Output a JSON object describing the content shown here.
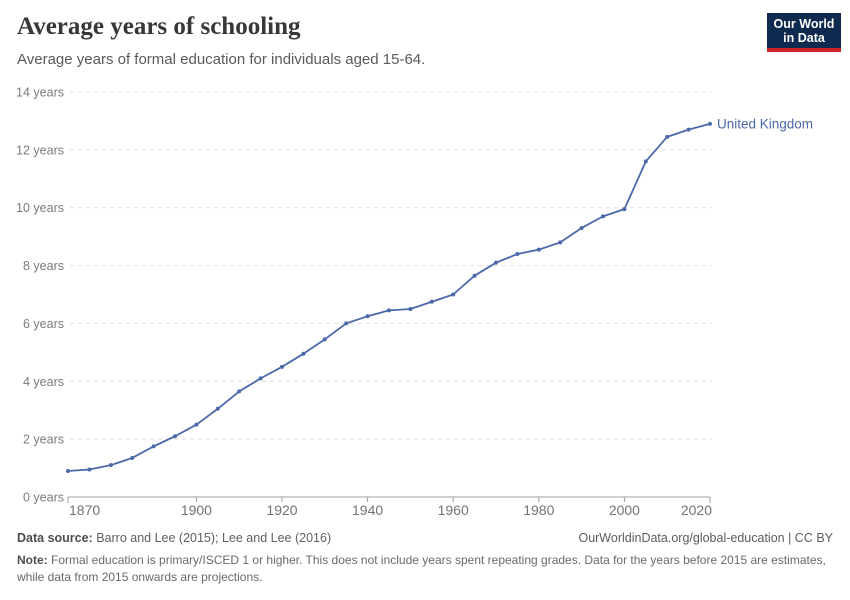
{
  "header": {
    "title": "Average years of schooling",
    "subtitle": "Average years of formal education for individuals aged 15-64.",
    "logo": {
      "line1": "Our World",
      "line2": "in Data"
    }
  },
  "colors": {
    "line": "#4a69a8",
    "grid": "#dddddd",
    "axis": "#a1a1a1",
    "logo_bg": "#0e2a4e",
    "logo_red": "#cc2428"
  },
  "chart_data": {
    "type": "line",
    "title": "Average years of schooling",
    "xlabel": "",
    "ylabel": "",
    "x_range": [
      1870,
      2020
    ],
    "y_range": [
      0,
      14
    ],
    "x_ticks": [
      1870,
      1900,
      1920,
      1940,
      1960,
      1980,
      2000,
      2020
    ],
    "y_ticks": [
      0,
      2,
      4,
      6,
      8,
      10,
      12,
      14
    ],
    "y_tick_labels": [
      "0 years",
      "2 years",
      "4 years",
      "6 years",
      "8 years",
      "10 years",
      "12 years",
      "14 years"
    ],
    "grid": "dashed horizontal",
    "legend_position": "label at end of line",
    "series": [
      {
        "name": "United Kingdom",
        "color": "#4a69a8",
        "points": [
          [
            1870,
            0.9
          ],
          [
            1875,
            0.95
          ],
          [
            1880,
            1.1
          ],
          [
            1885,
            1.35
          ],
          [
            1890,
            1.75
          ],
          [
            1895,
            2.1
          ],
          [
            1900,
            2.5
          ],
          [
            1905,
            3.05
          ],
          [
            1910,
            3.65
          ],
          [
            1915,
            4.1
          ],
          [
            1920,
            4.5
          ],
          [
            1925,
            4.95
          ],
          [
            1930,
            5.45
          ],
          [
            1935,
            6.0
          ],
          [
            1940,
            6.25
          ],
          [
            1945,
            6.45
          ],
          [
            1950,
            6.5
          ],
          [
            1955,
            6.75
          ],
          [
            1960,
            7.0
          ],
          [
            1965,
            7.65
          ],
          [
            1970,
            8.1
          ],
          [
            1975,
            8.4
          ],
          [
            1980,
            8.55
          ],
          [
            1985,
            8.8
          ],
          [
            1990,
            9.3
          ],
          [
            1995,
            9.7
          ],
          [
            2000,
            9.95
          ],
          [
            2005,
            11.6
          ],
          [
            2010,
            12.45
          ],
          [
            2015,
            12.7
          ],
          [
            2020,
            12.9
          ]
        ]
      }
    ]
  },
  "footer": {
    "source_label": "Data source:",
    "source_text": " Barro and Lee (2015); Lee and Lee (2016)",
    "link_text": "OurWorldinData.org/global-education | CC BY",
    "note_label": "Note:",
    "note_text": " Formal education is primary/ISCED 1 or higher. This does not include years spent repeating grades. Data for the years before 2015 are estimates, while data from 2015 onwards are projections."
  }
}
